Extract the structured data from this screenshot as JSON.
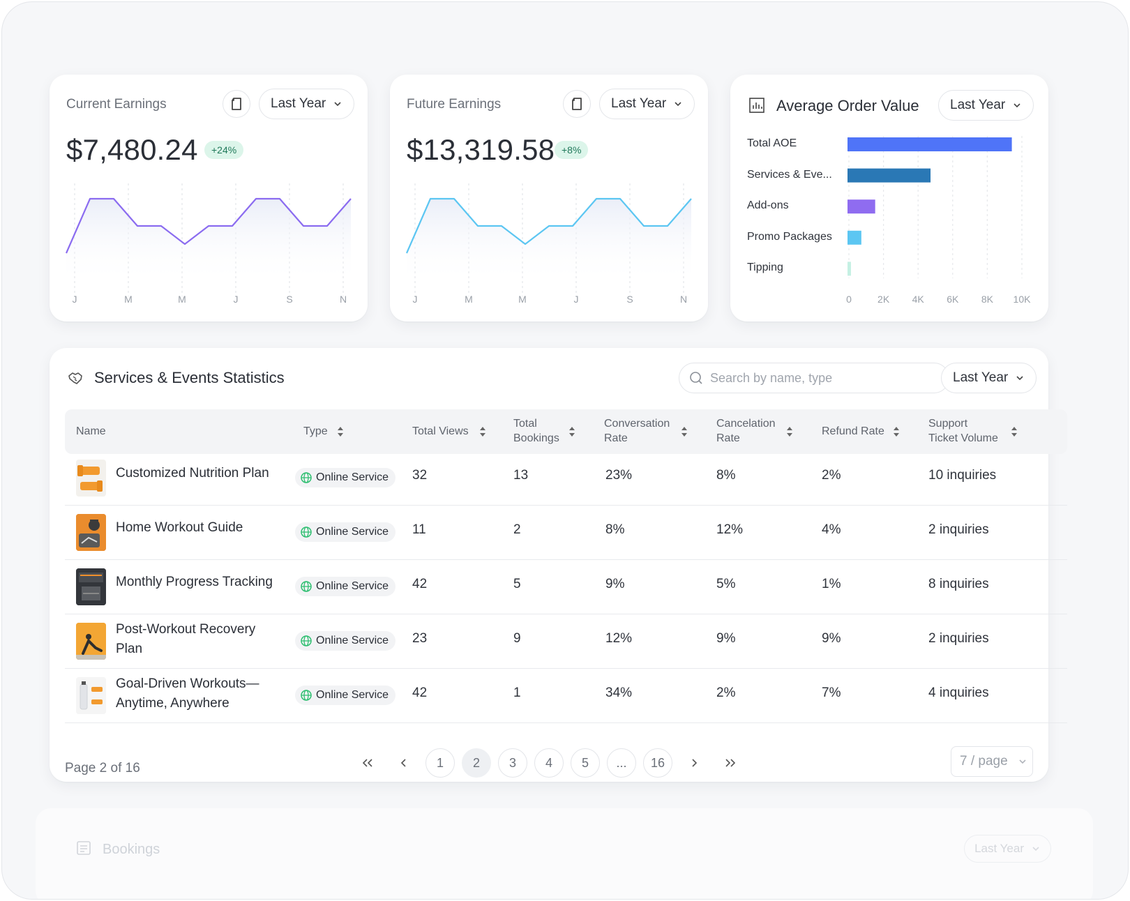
{
  "current_earnings": {
    "label": "Current Earnings",
    "period": "Last Year",
    "amount": "$7,480.24",
    "delta": "+24%",
    "months": [
      "J",
      "M",
      "M",
      "J",
      "S",
      "N"
    ],
    "line_color": "#8b6cf0",
    "trend": [
      0.0,
      0.6,
      0.6,
      0.3,
      0.3,
      0.1,
      0.3,
      0.3,
      0.6,
      0.6,
      0.3,
      0.3,
      0.6
    ]
  },
  "future_earnings": {
    "label": "Future Earnings",
    "period": "Last Year",
    "amount": "$13,319.58",
    "delta": "+8%",
    "months": [
      "J",
      "M",
      "M",
      "J",
      "S",
      "N"
    ],
    "line_color": "#5cc6f2",
    "trend": [
      0.0,
      0.6,
      0.6,
      0.3,
      0.3,
      0.1,
      0.3,
      0.3,
      0.6,
      0.6,
      0.3,
      0.3,
      0.6
    ]
  },
  "aov": {
    "title": "Average Order Value",
    "period": "Last Year",
    "chart_data": {
      "type": "bar",
      "orientation": "horizontal",
      "categories": [
        "Total AOE",
        "Services & Eve...",
        "Add-ons",
        "Promo Packages",
        "Tipping"
      ],
      "values": [
        9500,
        4800,
        1600,
        800,
        200
      ],
      "colors": [
        "#4f74f8",
        "#2a78b5",
        "#8f6cf0",
        "#5cc6f2",
        "#c5f0e3"
      ],
      "xlim": [
        0,
        10000
      ],
      "x_ticks": [
        "0",
        "2K",
        "4K",
        "6K",
        "8K",
        "10K"
      ]
    }
  },
  "services": {
    "title": "Services & Events Statistics",
    "search_placeholder": "Search by name, type",
    "period": "Last Year",
    "columns": [
      {
        "line1": "Name",
        "line2": ""
      },
      {
        "line1": "Type",
        "line2": ""
      },
      {
        "line1": "Total Views",
        "line2": ""
      },
      {
        "line1": "Total",
        "line2": "Bookings"
      },
      {
        "line1": "Conversation",
        "line2": "Rate"
      },
      {
        "line1": "Cancelation",
        "line2": "Rate"
      },
      {
        "line1": "Refund Rate",
        "line2": ""
      },
      {
        "line1": "Support",
        "line2": "Ticket Volume"
      }
    ],
    "rows": [
      {
        "name1": "Customized Nutrition Plan",
        "name2": "",
        "type": "Online Service",
        "views": "32",
        "bookings": "13",
        "conversion": "23%",
        "cancel": "8%",
        "refund": "2%",
        "support": "10 inquiries"
      },
      {
        "name1": "Home Workout Guide",
        "name2": "",
        "type": "Online Service",
        "views": "11",
        "bookings": "2",
        "conversion": "8%",
        "cancel": "12%",
        "refund": "4%",
        "support": "2 inquiries"
      },
      {
        "name1": "Monthly Progress Tracking",
        "name2": "",
        "type": "Online Service",
        "views": "42",
        "bookings": "5",
        "conversion": "9%",
        "cancel": "5%",
        "refund": "1%",
        "support": "8 inquiries"
      },
      {
        "name1": "Post-Workout Recovery",
        "name2": "Plan",
        "type": "Online Service",
        "views": "23",
        "bookings": "9",
        "conversion": "12%",
        "cancel": "9%",
        "refund": "9%",
        "support": "2 inquiries"
      },
      {
        "name1": "Goal-Driven Workouts—",
        "name2": "Anytime, Anywhere",
        "type": "Online Service",
        "views": "42",
        "bookings": "1",
        "conversion": "34%",
        "cancel": "2%",
        "refund": "7%",
        "support": "4 inquiries"
      }
    ],
    "pagination": {
      "info": "Page 2 of 16",
      "pages": [
        "1",
        "2",
        "3",
        "4",
        "5",
        "...",
        "16"
      ],
      "current": "2",
      "per_page": "7 / page"
    }
  },
  "bookings": {
    "title": "Bookings",
    "period": "Last Year"
  }
}
